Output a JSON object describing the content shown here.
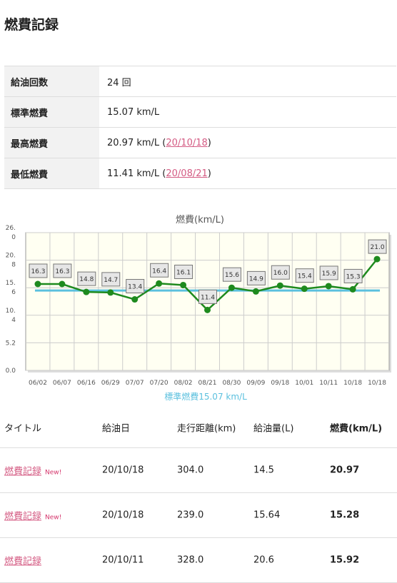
{
  "page_title": "燃費記録",
  "stats": [
    {
      "label": "給油回数",
      "value": "24 回",
      "link": null,
      "suffix": null
    },
    {
      "label": "標準燃費",
      "value": "15.07 km/L",
      "link": null,
      "suffix": null
    },
    {
      "label": "最高燃費",
      "value": "20.97 km/L (",
      "link": "20/10/18",
      "suffix": ")"
    },
    {
      "label": "最低燃費",
      "value": "11.41 km/L (",
      "link": "20/08/21",
      "suffix": ")"
    }
  ],
  "chart_data": {
    "type": "line",
    "title": "燃費(km/L)",
    "categories": [
      "06/02",
      "06/07",
      "06/16",
      "06/29",
      "07/07",
      "07/20",
      "08/02",
      "08/21",
      "08/30",
      "09/09",
      "09/18",
      "10/01",
      "10/11",
      "10/18",
      "10/18"
    ],
    "series": [
      {
        "values": [
          16.3,
          16.3,
          14.8,
          14.7,
          13.4,
          16.4,
          16.1,
          11.4,
          15.6,
          14.9,
          16.0,
          15.4,
          15.9,
          15.3,
          21.0
        ]
      }
    ],
    "data_labels": [
      "16.3",
      "16.3",
      "14.8",
      "14.7",
      "13.4",
      "16.4",
      "16.1",
      "11.4",
      "15.6",
      "14.9",
      "16.0",
      "15.4",
      "15.9",
      "15.3",
      "21.0"
    ],
    "reference_line": {
      "value": 15.07,
      "label": "標準燃費15.07 km/L",
      "color": "#5bc0de"
    },
    "ylim": [
      0,
      26.0
    ],
    "y_ticks": [
      {
        "v": 0,
        "lines": [
          "0.0"
        ]
      },
      {
        "v": 5.2,
        "lines": [
          "5.2"
        ]
      },
      {
        "v": 10.4,
        "lines": [
          "10.",
          "4"
        ]
      },
      {
        "v": 15.6,
        "lines": [
          "15.",
          "6"
        ]
      },
      {
        "v": 20.8,
        "lines": [
          "20.",
          "8"
        ]
      },
      {
        "v": 26.0,
        "lines": [
          "26.",
          "0"
        ]
      }
    ],
    "grid": true,
    "line_color": "#1e8a1e",
    "background": "#fffff2"
  },
  "log": {
    "headers": [
      "タイトル",
      "給油日",
      "走行距離(km)",
      "給油量(L)",
      "燃費(km/L)"
    ],
    "rows": [
      {
        "title": "燃費記録",
        "badge": "New!",
        "date": "20/10/18",
        "distance": "304.0",
        "fuel": "14.5",
        "economy": "20.97"
      },
      {
        "title": "燃費記録",
        "badge": "New!",
        "date": "20/10/18",
        "distance": "239.0",
        "fuel": "15.64",
        "economy": "15.28"
      },
      {
        "title": "燃費記録",
        "badge": "",
        "date": "20/10/11",
        "distance": "328.0",
        "fuel": "20.6",
        "economy": "15.92"
      }
    ]
  }
}
